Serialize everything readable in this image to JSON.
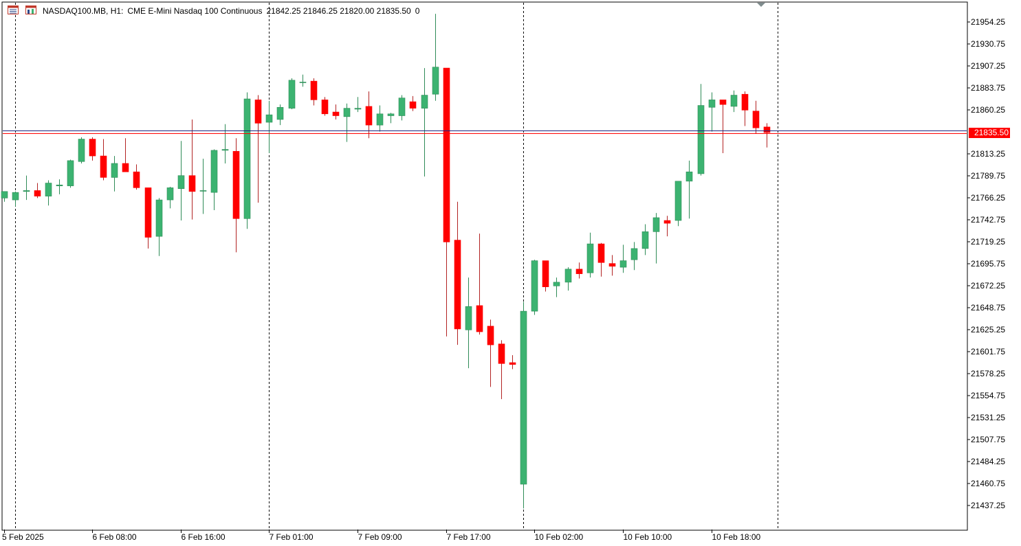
{
  "header": {
    "symbol": "NASDAQ100.MB, H1:",
    "description": "CME E-Mini Nasdaq 100 Continuous",
    "ohlc": "21842.25 21846.25 21820.00 21835.50",
    "volume": "0"
  },
  "colors": {
    "bull": "#3cb371",
    "bear": "#ff0000",
    "wick_bull": "#2e8b57",
    "wick_bear": "#b22222",
    "ask_line": "#1a237e",
    "bid_line": "#ff0000",
    "grid_sep": "#000000",
    "axis": "#000000",
    "background": "#ffffff"
  },
  "icons": [
    "chart-list-icon",
    "chart-window-icon",
    "shift-marker-icon"
  ],
  "chart_data": {
    "type": "candlestick",
    "timeframe": "H1",
    "current_price": "21835.50",
    "y_ticks": [
      "21954.25",
      "21930.75",
      "21907.25",
      "21883.75",
      "21860.25",
      "21835.50",
      "21813.25",
      "21789.75",
      "21766.25",
      "21742.75",
      "21719.25",
      "21695.75",
      "21672.25",
      "21648.75",
      "21625.25",
      "21601.75",
      "21578.25",
      "21554.75",
      "21531.25",
      "21507.75",
      "21484.25",
      "21460.75",
      "21437.25"
    ],
    "ylim": [
      21428,
      21968
    ],
    "x_labels": [
      "5 Feb 2025",
      "6 Feb 08:00",
      "6 Feb 16:00",
      "7 Feb 01:00",
      "7 Feb 09:00",
      "7 Feb 17:00",
      "10 Feb 02:00",
      "10 Feb 10:00",
      "10 Feb 18:00"
    ],
    "x_label_bar_index": [
      0,
      8,
      16,
      24,
      32,
      40,
      48,
      56,
      64
    ],
    "day_separator_bar_index": [
      1,
      24,
      47,
      70
    ],
    "candles": [
      {
        "o": 21766,
        "h": 21773,
        "l": 21762,
        "c": 21773
      },
      {
        "o": 21764,
        "h": 21773,
        "l": 21757,
        "c": 21772
      },
      {
        "o": 21773,
        "h": 21790,
        "l": 21764,
        "c": 21774
      },
      {
        "o": 21774,
        "h": 21782,
        "l": 21766,
        "c": 21768
      },
      {
        "o": 21768,
        "h": 21785,
        "l": 21758,
        "c": 21782
      },
      {
        "o": 21779,
        "h": 21786,
        "l": 21770,
        "c": 21780
      },
      {
        "o": 21779,
        "h": 21807,
        "l": 21777,
        "c": 21806
      },
      {
        "o": 21805,
        "h": 21831,
        "l": 21803,
        "c": 21829
      },
      {
        "o": 21829,
        "h": 21831,
        "l": 21806,
        "c": 21811
      },
      {
        "o": 21811,
        "h": 21829,
        "l": 21785,
        "c": 21788
      },
      {
        "o": 21788,
        "h": 21811,
        "l": 21773,
        "c": 21803
      },
      {
        "o": 21803,
        "h": 21830,
        "l": 21794,
        "c": 21794
      },
      {
        "o": 21794,
        "h": 21802,
        "l": 21775,
        "c": 21777
      },
      {
        "o": 21777,
        "h": 21777,
        "l": 21712,
        "c": 21724
      },
      {
        "o": 21725,
        "h": 21766,
        "l": 21704,
        "c": 21764
      },
      {
        "o": 21764,
        "h": 21778,
        "l": 21755,
        "c": 21777
      },
      {
        "o": 21776,
        "h": 21827,
        "l": 21742,
        "c": 21790
      },
      {
        "o": 21790,
        "h": 21850,
        "l": 21743,
        "c": 21773
      },
      {
        "o": 21774,
        "h": 21808,
        "l": 21749,
        "c": 21774
      },
      {
        "o": 21772,
        "h": 21818,
        "l": 21753,
        "c": 21817
      },
      {
        "o": 21817,
        "h": 21845,
        "l": 21803,
        "c": 21818
      },
      {
        "o": 21816,
        "h": 21830,
        "l": 21708,
        "c": 21744
      },
      {
        "o": 21744,
        "h": 21879,
        "l": 21733,
        "c": 21872
      },
      {
        "o": 21871,
        "h": 21876,
        "l": 21761,
        "c": 21846
      },
      {
        "o": 21847,
        "h": 21870,
        "l": 21814,
        "c": 21855
      },
      {
        "o": 21850,
        "h": 21866,
        "l": 21844,
        "c": 21863
      },
      {
        "o": 21862,
        "h": 21894,
        "l": 21861,
        "c": 21892
      },
      {
        "o": 21890,
        "h": 21898,
        "l": 21885,
        "c": 21890
      },
      {
        "o": 21891,
        "h": 21894,
        "l": 21865,
        "c": 21871
      },
      {
        "o": 21871,
        "h": 21874,
        "l": 21854,
        "c": 21856
      },
      {
        "o": 21858,
        "h": 21866,
        "l": 21850,
        "c": 21854
      },
      {
        "o": 21853,
        "h": 21867,
        "l": 21826,
        "c": 21862
      },
      {
        "o": 21861,
        "h": 21874,
        "l": 21858,
        "c": 21862
      },
      {
        "o": 21864,
        "h": 21880,
        "l": 21830,
        "c": 21844
      },
      {
        "o": 21844,
        "h": 21865,
        "l": 21837,
        "c": 21856
      },
      {
        "o": 21854,
        "h": 21857,
        "l": 21846,
        "c": 21856
      },
      {
        "o": 21854,
        "h": 21876,
        "l": 21849,
        "c": 21873
      },
      {
        "o": 21869,
        "h": 21875,
        "l": 21859,
        "c": 21862
      },
      {
        "o": 21862,
        "h": 21905,
        "l": 21789,
        "c": 21876
      },
      {
        "o": 21877,
        "h": 21963,
        "l": 21870,
        "c": 21906
      },
      {
        "o": 21905,
        "h": 21905,
        "l": 21618,
        "c": 21719
      },
      {
        "o": 21721,
        "h": 21762,
        "l": 21609,
        "c": 21626
      },
      {
        "o": 21625,
        "h": 21681,
        "l": 21584,
        "c": 21650
      },
      {
        "o": 21651,
        "h": 21728,
        "l": 21620,
        "c": 21623
      },
      {
        "o": 21629,
        "h": 21636,
        "l": 21564,
        "c": 21609
      },
      {
        "o": 21610,
        "h": 21614,
        "l": 21551,
        "c": 21589
      },
      {
        "o": 21590,
        "h": 21598,
        "l": 21583,
        "c": 21588
      },
      {
        "o": 21460,
        "h": 21655,
        "l": 21434,
        "c": 21645
      },
      {
        "o": 21645,
        "h": 21700,
        "l": 21641,
        "c": 21699
      },
      {
        "o": 21699,
        "h": 21699,
        "l": 21666,
        "c": 21671
      },
      {
        "o": 21672,
        "h": 21681,
        "l": 21660,
        "c": 21676
      },
      {
        "o": 21676,
        "h": 21692,
        "l": 21667,
        "c": 21690
      },
      {
        "o": 21690,
        "h": 21697,
        "l": 21680,
        "c": 21685
      },
      {
        "o": 21686,
        "h": 21729,
        "l": 21681,
        "c": 21717
      },
      {
        "o": 21717,
        "h": 21718,
        "l": 21682,
        "c": 21697
      },
      {
        "o": 21696,
        "h": 21705,
        "l": 21683,
        "c": 21693
      },
      {
        "o": 21692,
        "h": 21716,
        "l": 21686,
        "c": 21699
      },
      {
        "o": 21700,
        "h": 21719,
        "l": 21689,
        "c": 21712
      },
      {
        "o": 21712,
        "h": 21738,
        "l": 21705,
        "c": 21730
      },
      {
        "o": 21730,
        "h": 21750,
        "l": 21696,
        "c": 21745
      },
      {
        "o": 21742,
        "h": 21747,
        "l": 21725,
        "c": 21739
      },
      {
        "o": 21742,
        "h": 21784,
        "l": 21736,
        "c": 21784
      },
      {
        "o": 21784,
        "h": 21806,
        "l": 21744,
        "c": 21794
      },
      {
        "o": 21792,
        "h": 21888,
        "l": 21790,
        "c": 21865
      },
      {
        "o": 21863,
        "h": 21879,
        "l": 21837,
        "c": 21871
      },
      {
        "o": 21871,
        "h": 21868,
        "l": 21814,
        "c": 21866
      },
      {
        "o": 21864,
        "h": 21881,
        "l": 21858,
        "c": 21876
      },
      {
        "o": 21877,
        "h": 21880,
        "l": 21843,
        "c": 21860
      },
      {
        "o": 21859,
        "h": 21870,
        "l": 21835,
        "c": 21841
      },
      {
        "o": 21842,
        "h": 21846,
        "l": 21820,
        "c": 21836
      }
    ]
  }
}
